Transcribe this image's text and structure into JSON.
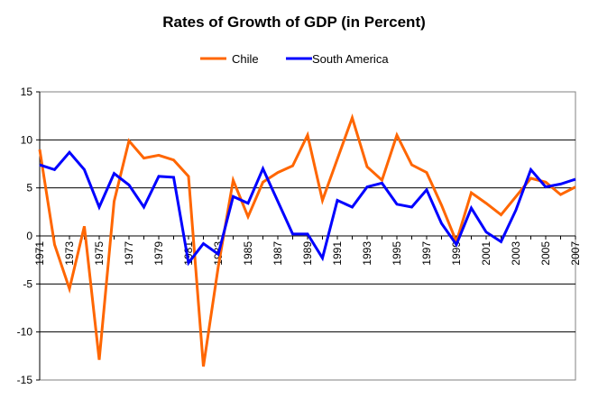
{
  "chart_data": {
    "type": "line",
    "title": "Rates of Growth of GDP (in Percent)",
    "xlabel": "",
    "ylabel": "",
    "x": [
      1971,
      1972,
      1973,
      1974,
      1975,
      1976,
      1977,
      1978,
      1979,
      1980,
      1981,
      1982,
      1983,
      1984,
      1985,
      1986,
      1987,
      1988,
      1989,
      1990,
      1991,
      1992,
      1993,
      1994,
      1995,
      1996,
      1997,
      1998,
      1999,
      2000,
      2001,
      2002,
      2003,
      2004,
      2005,
      2006,
      2007
    ],
    "x_tick_labels": [
      "1971",
      "1973",
      "1975",
      "1977",
      "1979",
      "1981",
      "1983",
      "1985",
      "1987",
      "1989",
      "1991",
      "1993",
      "1995",
      "1997",
      "1999",
      "2001",
      "2003",
      "2005",
      "2007"
    ],
    "ylim": [
      -15,
      15
    ],
    "y_ticks": [
      15,
      10,
      5,
      0,
      -5,
      -10,
      -15
    ],
    "grid": true,
    "legend_position": "top",
    "series": [
      {
        "name": "Chile",
        "color": "#FF6600",
        "values": [
          9.0,
          -0.9,
          -5.5,
          1.0,
          -12.9,
          3.6,
          9.9,
          8.1,
          8.4,
          7.9,
          6.2,
          -13.6,
          -3.2,
          5.8,
          2.0,
          5.6,
          6.6,
          7.3,
          10.5,
          3.7,
          8.0,
          12.3,
          7.2,
          5.8,
          10.5,
          7.4,
          6.6,
          3.2,
          -0.6,
          4.5,
          3.4,
          2.2,
          4.1,
          6.0,
          5.6,
          4.3,
          5.1
        ]
      },
      {
        "name": "South America",
        "color": "#0000FF",
        "values": [
          7.4,
          6.9,
          8.7,
          6.9,
          3.0,
          6.5,
          5.3,
          3.0,
          6.2,
          6.1,
          -2.8,
          -0.8,
          -1.9,
          4.1,
          3.4,
          7.0,
          3.6,
          0.2,
          0.2,
          -2.3,
          3.7,
          3.0,
          5.1,
          5.5,
          3.3,
          3.0,
          4.8,
          1.3,
          -0.9,
          2.9,
          0.4,
          -0.6,
          2.7,
          6.9,
          5.1,
          5.4,
          5.9
        ]
      }
    ]
  }
}
